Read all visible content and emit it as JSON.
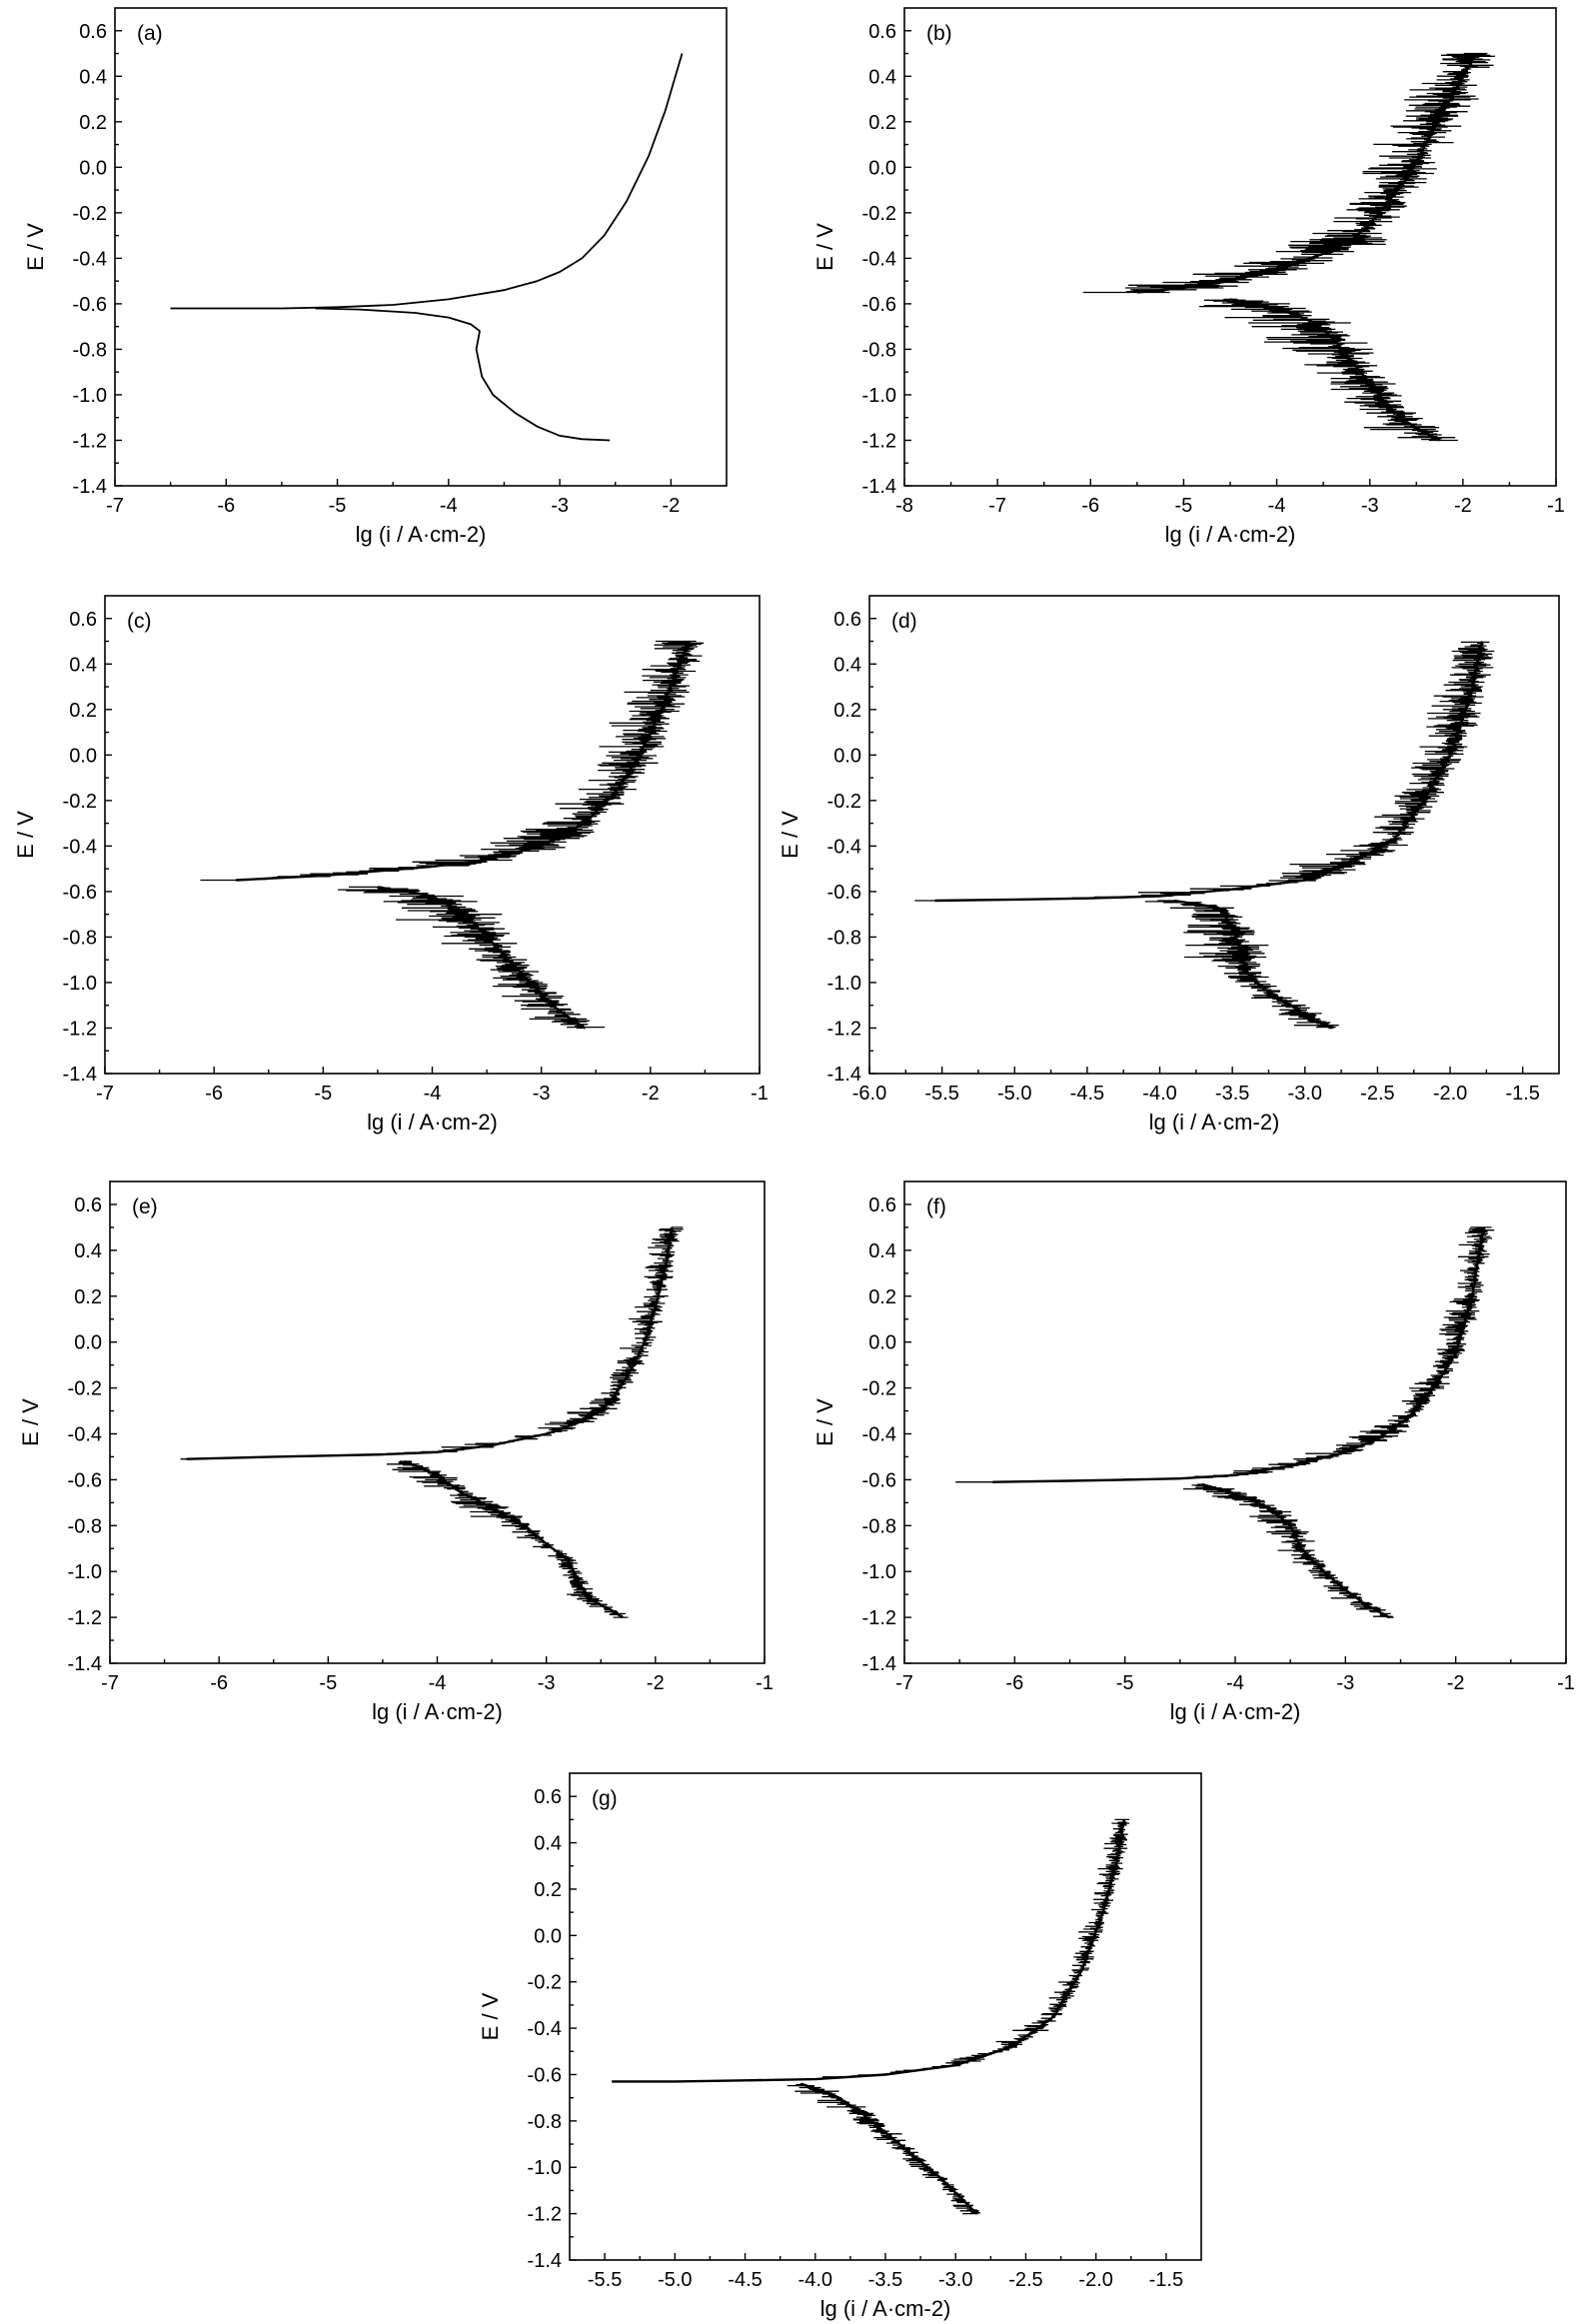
{
  "figure": {
    "panel_count": 7
  },
  "chart_data": [
    {
      "type": "line",
      "panel_label": "(a)",
      "xlabel": "lg (i / A·cm-2)",
      "ylabel": "E / V",
      "xlim": [
        -7,
        -1.5
      ],
      "ylim": [
        -1.4,
        0.7
      ],
      "xticks": [
        -7,
        -6,
        -5,
        -4,
        -3,
        -2
      ],
      "xtick_labels": [
        "-7",
        "-6",
        "-5",
        "-4",
        "-3",
        "-2"
      ],
      "yticks": [
        -1.4,
        -1.2,
        -1.0,
        -0.8,
        -0.6,
        -0.4,
        -0.2,
        0.0,
        0.2,
        0.4,
        0.6
      ],
      "ytick_labels": [
        "-1.4",
        "-1.2",
        "-1.0",
        "-0.8",
        "-0.6",
        "-0.4",
        "-0.2",
        "0.0",
        "0.2",
        "0.4",
        "0.6"
      ],
      "noise": 0,
      "anodic": {
        "x": [
          -6.5,
          -5.5,
          -5.0,
          -4.5,
          -4.0,
          -3.5,
          -3.2,
          -3.0,
          -2.8,
          -2.6,
          -2.4,
          -2.2,
          -2.05,
          -1.9
        ],
        "y": [
          -0.62,
          -0.62,
          -0.615,
          -0.605,
          -0.58,
          -0.54,
          -0.5,
          -0.46,
          -0.4,
          -0.3,
          -0.15,
          0.05,
          0.25,
          0.5
        ]
      },
      "cathodic": {
        "x": [
          -5.2,
          -4.8,
          -4.3,
          -4.0,
          -3.8,
          -3.72,
          -3.75,
          -3.7,
          -3.6,
          -3.4,
          -3.2,
          -3.0,
          -2.8,
          -2.55
        ],
        "y": [
          -0.62,
          -0.625,
          -0.64,
          -0.66,
          -0.69,
          -0.72,
          -0.8,
          -0.92,
          -1.0,
          -1.08,
          -1.14,
          -1.18,
          -1.195,
          -1.2
        ]
      }
    },
    {
      "type": "line",
      "panel_label": "(b)",
      "xlabel": "lg (i / A·cm-2)",
      "ylabel": "E / V",
      "xlim": [
        -8,
        -1
      ],
      "ylim": [
        -1.4,
        0.7
      ],
      "xticks": [
        -8,
        -7,
        -6,
        -5,
        -4,
        -3,
        -2,
        -1
      ],
      "xtick_labels": [
        "-8",
        "-7",
        "-6",
        "-5",
        "-4",
        "-3",
        "-2",
        "-1"
      ],
      "yticks": [
        -1.4,
        -1.2,
        -1.0,
        -0.8,
        -0.6,
        -0.4,
        -0.2,
        0.0,
        0.2,
        0.4,
        0.6
      ],
      "ytick_labels": [
        "-1.4",
        "-1.2",
        "-1.0",
        "-0.8",
        "-0.6",
        "-0.4",
        "-0.2",
        "0.0",
        "0.2",
        "0.4",
        "0.6"
      ],
      "noise": 0.55,
      "anodic": {
        "x": [
          -5.5,
          -5.0,
          -4.5,
          -4.0,
          -3.5,
          -3.2,
          -3.0,
          -2.8,
          -2.6,
          -2.4,
          -2.2,
          -2.0,
          -1.85
        ],
        "y": [
          -0.55,
          -0.53,
          -0.5,
          -0.45,
          -0.38,
          -0.32,
          -0.25,
          -0.15,
          -0.05,
          0.1,
          0.25,
          0.4,
          0.5
        ]
      },
      "cathodic": {
        "x": [
          -4.5,
          -4.0,
          -3.6,
          -3.4,
          -3.2,
          -3.0,
          -2.8,
          -2.6,
          -2.4,
          -2.25
        ],
        "y": [
          -0.58,
          -0.62,
          -0.68,
          -0.75,
          -0.85,
          -0.95,
          -1.05,
          -1.12,
          -1.17,
          -1.2
        ]
      }
    },
    {
      "type": "line",
      "panel_label": "(c)",
      "xlabel": "lg (i / A·cm-2)",
      "ylabel": "E / V",
      "xlim": [
        -7,
        -1
      ],
      "ylim": [
        -1.4,
        0.7
      ],
      "xticks": [
        -7,
        -6,
        -5,
        -4,
        -3,
        -2,
        -1
      ],
      "xtick_labels": [
        "-7",
        "-6",
        "-5",
        "-4",
        "-3",
        "-2",
        "-1"
      ],
      "yticks": [
        -1.4,
        -1.2,
        -1.0,
        -0.8,
        -0.6,
        -0.4,
        -0.2,
        0.0,
        0.2,
        0.4,
        0.6
      ],
      "ytick_labels": [
        "-1.4",
        "-1.2",
        "-1.0",
        "-0.8",
        "-0.6",
        "-0.4",
        "-0.2",
        "0.0",
        "0.2",
        "0.4",
        "0.6"
      ],
      "noise": 0.4,
      "anodic": {
        "x": [
          -5.8,
          -5.0,
          -4.5,
          -4.0,
          -3.5,
          -3.0,
          -2.6,
          -2.3,
          -2.1,
          -1.9,
          -1.75,
          -1.65
        ],
        "y": [
          -0.55,
          -0.53,
          -0.51,
          -0.49,
          -0.46,
          -0.4,
          -0.3,
          -0.15,
          0.0,
          0.2,
          0.38,
          0.5
        ]
      },
      "cathodic": {
        "x": [
          -4.5,
          -4.0,
          -3.7,
          -3.5,
          -3.3,
          -3.1,
          -2.9,
          -2.7,
          -2.6
        ],
        "y": [
          -0.58,
          -0.62,
          -0.7,
          -0.8,
          -0.9,
          -1.0,
          -1.1,
          -1.17,
          -1.2
        ]
      }
    },
    {
      "type": "line",
      "panel_label": "(d)",
      "xlabel": "lg (i / A·cm-2)",
      "ylabel": "E / V",
      "xlim": [
        -6,
        -1.25
      ],
      "ylim": [
        -1.4,
        0.7
      ],
      "xticks": [
        -6.0,
        -5.5,
        -5.0,
        -4.5,
        -4.0,
        -3.5,
        -3.0,
        -2.5,
        -2.0,
        -1.5
      ],
      "xtick_labels": [
        "-6.0",
        "-5.5",
        "-5.0",
        "-4.5",
        "-4.0",
        "-3.5",
        "-3.0",
        "-2.5",
        "-2.0",
        "-1.5"
      ],
      "yticks": [
        -1.4,
        -1.2,
        -1.0,
        -0.8,
        -0.6,
        -0.4,
        -0.2,
        0.0,
        0.2,
        0.4,
        0.6
      ],
      "ytick_labels": [
        "-1.4",
        "-1.2",
        "-1.0",
        "-0.8",
        "-0.6",
        "-0.4",
        "-0.2",
        "0.0",
        "0.2",
        "0.4",
        "0.6"
      ],
      "noise": 0.25,
      "anodic": {
        "x": [
          -5.55,
          -5.0,
          -4.5,
          -4.0,
          -3.5,
          -3.0,
          -2.7,
          -2.4,
          -2.2,
          -2.0,
          -1.85,
          -1.78
        ],
        "y": [
          -0.64,
          -0.635,
          -0.63,
          -0.62,
          -0.59,
          -0.55,
          -0.48,
          -0.38,
          -0.22,
          0.0,
          0.28,
          0.5
        ]
      },
      "cathodic": {
        "x": [
          -3.9,
          -3.6,
          -3.5,
          -3.45,
          -3.4,
          -3.3,
          -3.1,
          -2.95,
          -2.82
        ],
        "y": [
          -0.64,
          -0.67,
          -0.75,
          -0.85,
          -0.95,
          -1.02,
          -1.1,
          -1.16,
          -1.2
        ]
      }
    },
    {
      "type": "line",
      "panel_label": "(e)",
      "xlabel": "lg (i / A·cm-2)",
      "ylabel": "E / V",
      "xlim": [
        -7,
        -1
      ],
      "ylim": [
        -1.4,
        0.7
      ],
      "xticks": [
        -7,
        -6,
        -5,
        -4,
        -3,
        -2,
        -1
      ],
      "xtick_labels": [
        "-7",
        "-6",
        "-5",
        "-4",
        "-3",
        "-2",
        "-1"
      ],
      "yticks": [
        -1.4,
        -1.2,
        -1.0,
        -0.8,
        -0.6,
        -0.4,
        -0.2,
        0.0,
        0.2,
        0.4,
        0.6
      ],
      "ytick_labels": [
        "-1.4",
        "-1.2",
        "-1.0",
        "-0.8",
        "-0.6",
        "-0.4",
        "-0.2",
        "0.0",
        "0.2",
        "0.4",
        "0.6"
      ],
      "noise": 0.2,
      "anodic": {
        "x": [
          -6.3,
          -5.5,
          -5.0,
          -4.5,
          -4.0,
          -3.5,
          -3.0,
          -2.7,
          -2.5,
          -2.4,
          -2.3,
          -2.2,
          -2.1,
          -2.0,
          -1.9,
          -1.85
        ],
        "y": [
          -0.51,
          -0.5,
          -0.495,
          -0.49,
          -0.48,
          -0.45,
          -0.4,
          -0.35,
          -0.3,
          -0.25,
          -0.18,
          -0.1,
          0.0,
          0.15,
          0.35,
          0.5
        ]
      },
      "cathodic": {
        "x": [
          -4.3,
          -4.0,
          -3.8,
          -3.5,
          -3.2,
          -3.0,
          -2.8,
          -2.7,
          -2.6,
          -2.4,
          -2.3
        ],
        "y": [
          -0.52,
          -0.58,
          -0.65,
          -0.72,
          -0.8,
          -0.88,
          -0.95,
          -1.05,
          -1.12,
          -1.17,
          -1.2
        ]
      }
    },
    {
      "type": "line",
      "panel_label": "(f)",
      "xlabel": "lg (i / A·cm-2)",
      "ylabel": "E / V",
      "xlim": [
        -7,
        -1
      ],
      "ylim": [
        -1.4,
        0.7
      ],
      "xticks": [
        -7,
        -6,
        -5,
        -4,
        -3,
        -2,
        -1
      ],
      "xtick_labels": [
        "-7",
        "-6",
        "-5",
        "-4",
        "-3",
        "-2",
        "-1"
      ],
      "yticks": [
        -1.4,
        -1.2,
        -1.0,
        -0.8,
        -0.6,
        -0.4,
        -0.2,
        0.0,
        0.2,
        0.4,
        0.6
      ],
      "ytick_labels": [
        "-1.4",
        "-1.2",
        "-1.0",
        "-0.8",
        "-0.6",
        "-0.4",
        "-0.2",
        "0.0",
        "0.2",
        "0.4",
        "0.6"
      ],
      "noise": 0.22,
      "anodic": {
        "x": [
          -6.2,
          -5.5,
          -5.0,
          -4.5,
          -4.0,
          -3.5,
          -3.0,
          -2.7,
          -2.4,
          -2.2,
          -2.0,
          -1.85,
          -1.75
        ],
        "y": [
          -0.61,
          -0.605,
          -0.6,
          -0.595,
          -0.58,
          -0.54,
          -0.48,
          -0.42,
          -0.32,
          -0.2,
          -0.05,
          0.2,
          0.5
        ]
      },
      "cathodic": {
        "x": [
          -4.3,
          -4.0,
          -3.7,
          -3.5,
          -3.4,
          -3.2,
          -3.0,
          -2.8,
          -2.6
        ],
        "y": [
          -0.62,
          -0.66,
          -0.72,
          -0.8,
          -0.9,
          -1.0,
          -1.08,
          -1.15,
          -1.2
        ]
      }
    },
    {
      "type": "line",
      "panel_label": "(g)",
      "xlabel": "lg (i / A·cm-2)",
      "ylabel": "E / V",
      "xlim": [
        -5.75,
        -1.25
      ],
      "ylim": [
        -1.4,
        0.7
      ],
      "xticks": [
        -5.5,
        -5.0,
        -4.5,
        -4.0,
        -3.5,
        -3.0,
        -2.5,
        -2.0,
        -1.5
      ],
      "xtick_labels": [
        "-5.5",
        "-5.0",
        "-4.5",
        "-4.0",
        "-3.5",
        "-3.0",
        "-2.5",
        "-2.0",
        "-1.5"
      ],
      "yticks": [
        -1.4,
        -1.2,
        -1.0,
        -0.8,
        -0.6,
        -0.4,
        -0.2,
        0.0,
        0.2,
        0.4,
        0.6
      ],
      "ytick_labels": [
        "-1.4",
        "-1.2",
        "-1.0",
        "-0.8",
        "-0.6",
        "-0.4",
        "-0.2",
        "0.0",
        "0.2",
        "0.4",
        "0.6"
      ],
      "noise": 0.12,
      "anodic": {
        "x": [
          -5.45,
          -5.0,
          -4.5,
          -4.0,
          -3.5,
          -3.0,
          -2.6,
          -2.3,
          -2.1,
          -1.95,
          -1.85,
          -1.8
        ],
        "y": [
          -0.63,
          -0.63,
          -0.625,
          -0.62,
          -0.6,
          -0.56,
          -0.48,
          -0.35,
          -0.15,
          0.1,
          0.32,
          0.5
        ]
      },
      "cathodic": {
        "x": [
          -4.1,
          -3.9,
          -3.7,
          -3.5,
          -3.3,
          -3.1,
          -2.95,
          -2.85
        ],
        "y": [
          -0.64,
          -0.68,
          -0.75,
          -0.85,
          -0.95,
          -1.05,
          -1.14,
          -1.2
        ]
      }
    }
  ]
}
